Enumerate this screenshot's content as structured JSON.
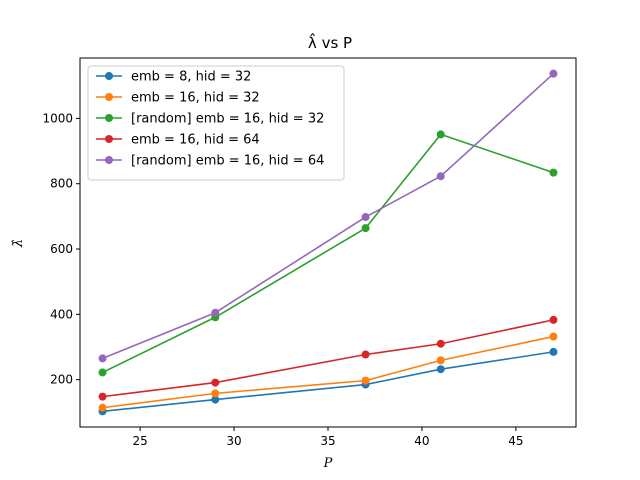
{
  "chart_data": {
    "type": "line",
    "title": "λ̂ vs P",
    "xlabel": "P",
    "ylabel": "λ̂",
    "xlim": [
      21.8,
      48.2
    ],
    "ylim": [
      55,
      1185
    ],
    "x_ticks": [
      25,
      30,
      35,
      40,
      45
    ],
    "y_ticks": [
      200,
      400,
      600,
      800,
      1000
    ],
    "grid": false,
    "legend_position": "upper-left",
    "x": [
      23,
      29,
      37,
      41,
      47
    ],
    "series": [
      {
        "name": "emb = 8, hid = 32",
        "color": "#1f77b4",
        "values": [
          103,
          139,
          185,
          232,
          285
        ]
      },
      {
        "name": "emb = 16, hid = 32",
        "color": "#ff7f0e",
        "values": [
          114,
          158,
          197,
          259,
          332
        ]
      },
      {
        "name": "[random] emb = 16, hid = 32",
        "color": "#2ca02c",
        "values": [
          222,
          391,
          664,
          951,
          834
        ]
      },
      {
        "name": "emb = 16, hid = 64",
        "color": "#d62728",
        "values": [
          148,
          191,
          277,
          310,
          383
        ]
      },
      {
        "name": "[random] emb = 16, hid = 64",
        "color": "#9467bd",
        "values": [
          265,
          405,
          698,
          823,
          1137
        ]
      }
    ]
  }
}
